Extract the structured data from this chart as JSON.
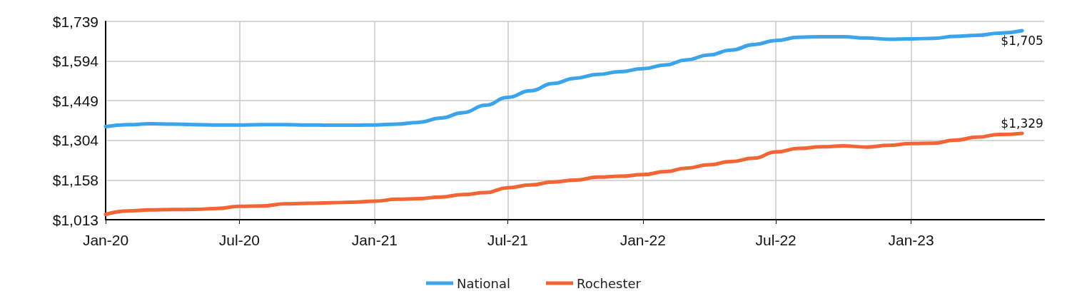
{
  "chart_data": {
    "type": "line",
    "x": [
      "2020-01",
      "2020-02",
      "2020-03",
      "2020-04",
      "2020-05",
      "2020-06",
      "2020-07",
      "2020-08",
      "2020-09",
      "2020-10",
      "2020-11",
      "2020-12",
      "2021-01",
      "2021-02",
      "2021-03",
      "2021-04",
      "2021-05",
      "2021-06",
      "2021-07",
      "2021-08",
      "2021-09",
      "2021-10",
      "2021-11",
      "2021-12",
      "2022-01",
      "2022-02",
      "2022-03",
      "2022-04",
      "2022-05",
      "2022-06",
      "2022-07",
      "2022-08",
      "2022-09",
      "2022-10",
      "2022-11",
      "2022-12",
      "2023-01",
      "2023-02",
      "2023-03",
      "2023-04",
      "2023-05",
      "2023-06"
    ],
    "series": [
      {
        "name": "National",
        "color": "#3ba4eb",
        "values": [
          1354,
          1361,
          1364,
          1363,
          1361,
          1360,
          1360,
          1361,
          1361,
          1360,
          1359,
          1359,
          1360,
          1363,
          1369,
          1385,
          1405,
          1432,
          1461,
          1485,
          1512,
          1531,
          1545,
          1555,
          1566,
          1580,
          1598,
          1616,
          1634,
          1654,
          1669,
          1681,
          1683,
          1683,
          1678,
          1674,
          1675,
          1677,
          1684,
          1688,
          1696,
          1705
        ],
        "value_labels": [
          null,
          null,
          null,
          null,
          null,
          null,
          null,
          null,
          null,
          null,
          null,
          null,
          null,
          null,
          null,
          null,
          null,
          null,
          null,
          null,
          null,
          null,
          null,
          null,
          null,
          null,
          null,
          null,
          null,
          null,
          null,
          null,
          null,
          null,
          null,
          null,
          null,
          null,
          null,
          null,
          null,
          "$1,705"
        ]
      },
      {
        "name": "Rochester",
        "color": "#f26535",
        "values": [
          1032,
          1045,
          1049,
          1050,
          1051,
          1054,
          1062,
          1063,
          1071,
          1073,
          1075,
          1077,
          1081,
          1088,
          1090,
          1096,
          1105,
          1112,
          1130,
          1140,
          1151,
          1158,
          1169,
          1172,
          1178,
          1189,
          1202,
          1214,
          1226,
          1238,
          1261,
          1274,
          1280,
          1283,
          1279,
          1285,
          1292,
          1293,
          1304,
          1315,
          1325,
          1329
        ],
        "value_labels": [
          null,
          null,
          null,
          null,
          null,
          null,
          null,
          null,
          null,
          null,
          null,
          null,
          null,
          null,
          null,
          null,
          null,
          null,
          null,
          null,
          null,
          null,
          null,
          null,
          null,
          null,
          null,
          null,
          null,
          null,
          null,
          null,
          null,
          null,
          null,
          null,
          null,
          null,
          null,
          null,
          null,
          "$1,329"
        ]
      }
    ],
    "xlim": [
      "2020-01",
      "2023-07"
    ],
    "xticks": [
      {
        "value": "2020-01",
        "label": "Jan-20"
      },
      {
        "value": "2020-07",
        "label": "Jul-20"
      },
      {
        "value": "2021-01",
        "label": "Jan-21"
      },
      {
        "value": "2021-07",
        "label": "Jul-21"
      },
      {
        "value": "2022-01",
        "label": "Jan-22"
      },
      {
        "value": "2022-07",
        "label": "Jul-22"
      },
      {
        "value": "2023-01",
        "label": "Jan-23"
      }
    ],
    "ylim": [
      1013,
      1739
    ],
    "yticks": [
      {
        "value": 1013,
        "label": "$1,013"
      },
      {
        "value": 1158,
        "label": "$1,158"
      },
      {
        "value": 1304,
        "label": "$1,304"
      },
      {
        "value": 1449,
        "label": "$1,449"
      },
      {
        "value": 1594,
        "label": "$1,594"
      },
      {
        "value": 1739,
        "label": "$1,739"
      }
    ],
    "grid": true,
    "legend": "bottom",
    "marker": "none",
    "line_style": "solid"
  }
}
